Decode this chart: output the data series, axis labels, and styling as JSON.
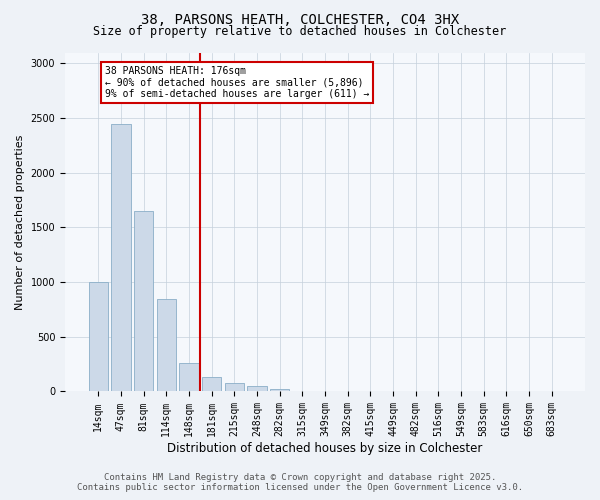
{
  "title_line1": "38, PARSONS HEATH, COLCHESTER, CO4 3HX",
  "title_line2": "Size of property relative to detached houses in Colchester",
  "xlabel": "Distribution of detached houses by size in Colchester",
  "ylabel": "Number of detached properties",
  "categories": [
    "14sqm",
    "47sqm",
    "81sqm",
    "114sqm",
    "148sqm",
    "181sqm",
    "215sqm",
    "248sqm",
    "282sqm",
    "315sqm",
    "349sqm",
    "382sqm",
    "415sqm",
    "449sqm",
    "482sqm",
    "516sqm",
    "549sqm",
    "583sqm",
    "616sqm",
    "650sqm",
    "683sqm"
  ],
  "values": [
    1000,
    2450,
    1650,
    850,
    260,
    130,
    80,
    50,
    20,
    0,
    0,
    0,
    0,
    0,
    0,
    0,
    0,
    0,
    0,
    0,
    0
  ],
  "bar_color": "#ccd9e8",
  "bar_edge_color": "#8aaec8",
  "vline_x_index": 4.5,
  "vline_color": "#cc0000",
  "annotation_line1": "38 PARSONS HEATH: 176sqm",
  "annotation_line2": "← 90% of detached houses are smaller (5,896)",
  "annotation_line3": "9% of semi-detached houses are larger (611) →",
  "annotation_box_facecolor": "#ffffff",
  "annotation_box_edgecolor": "#cc0000",
  "ylim": [
    0,
    3100
  ],
  "yticks": [
    0,
    500,
    1000,
    1500,
    2000,
    2500,
    3000
  ],
  "footer_line1": "Contains HM Land Registry data © Crown copyright and database right 2025.",
  "footer_line2": "Contains public sector information licensed under the Open Government Licence v3.0.",
  "bg_color": "#eef2f7",
  "plot_bg_color": "#f5f8fc",
  "grid_color": "#c5d0dc",
  "title1_fontsize": 10,
  "title2_fontsize": 8.5,
  "axis_fontsize": 8,
  "tick_fontsize": 7,
  "footer_fontsize": 6.5,
  "xlabel_fontsize": 8.5
}
